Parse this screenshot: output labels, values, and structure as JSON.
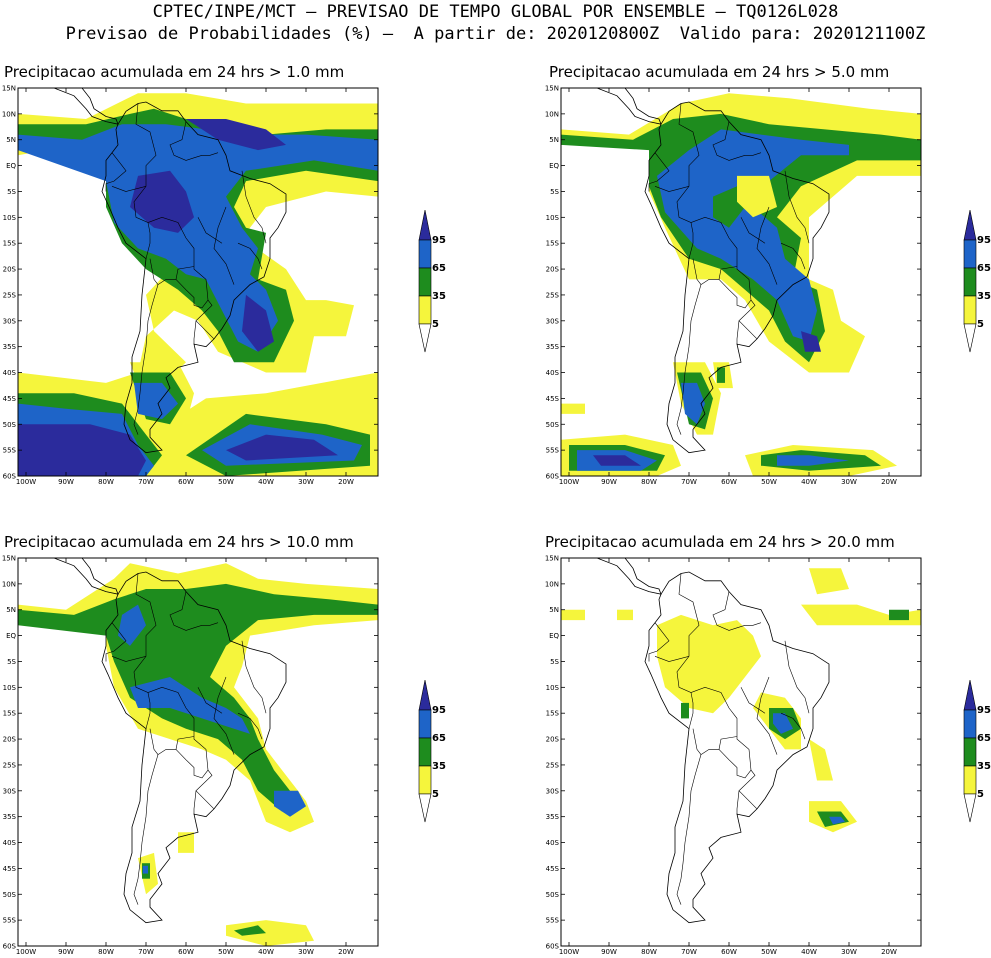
{
  "header": {
    "line1": "CPTEC/INPE/MCT – PREVISAO DE TEMPO GLOBAL POR ENSEMBLE – TQ0126L028",
    "line2": "Previsao de Probabilidades (%) –  A partir de: 2020120800Z  Valido para: 2020121100Z"
  },
  "panels": [
    {
      "title": "Precipitacao acumulada em 24 hrs > 1.0 mm"
    },
    {
      "title": "Precipitacao acumulada em 24 hrs > 5.0 mm"
    },
    {
      "title": "Precipitacao acumulada em 24 hrs > 10.0 mm"
    },
    {
      "title": "Precipitacao acumulada em 24 hrs > 20.0 mm"
    }
  ],
  "axes": {
    "lat_labels": [
      "15N",
      "10N",
      "5N",
      "EQ",
      "5S",
      "10S",
      "15S",
      "20S",
      "25S",
      "30S",
      "35S",
      "40S",
      "45S",
      "50S",
      "55S",
      "60S"
    ],
    "lon_labels": [
      "100W",
      "90W",
      "80W",
      "70W",
      "60W",
      "50W",
      "40W",
      "30W",
      "20W"
    ]
  },
  "colorbar": {
    "levels": [
      "95",
      "65",
      "35",
      "5"
    ],
    "colors": {
      "c95": "#2b2b9c",
      "c65": "#1e64c8",
      "c35": "#1e8c1e",
      "c5": "#f5f53c"
    }
  },
  "map_colors": {
    "yellow": "#f5f53c",
    "green": "#1e8c1e",
    "blue": "#1e64c8",
    "dark": "#2b2b9c"
  }
}
